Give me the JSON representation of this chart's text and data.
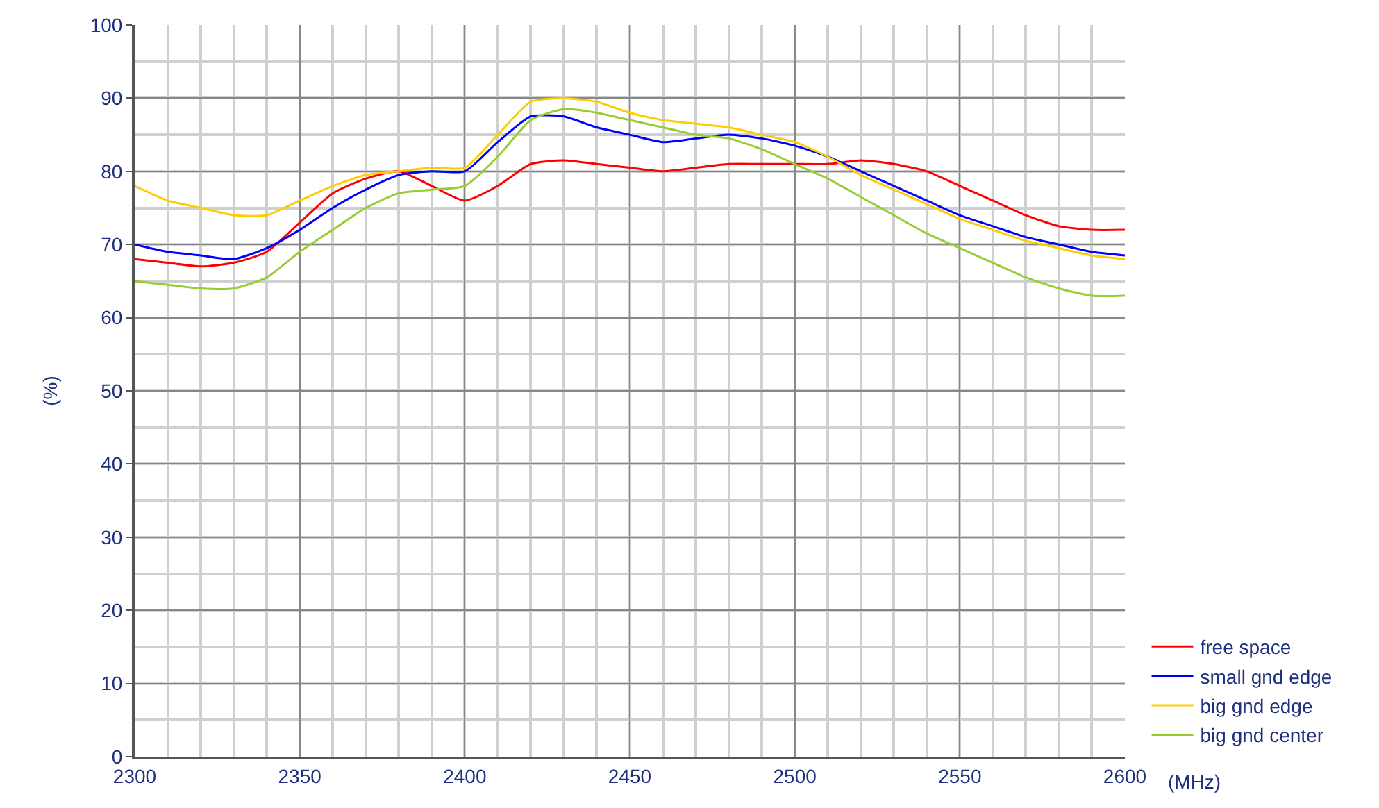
{
  "chart_data": {
    "type": "line",
    "xlabel": "(MHz)",
    "ylabel": "(%)",
    "x": [
      2300,
      2310,
      2320,
      2330,
      2340,
      2350,
      2360,
      2370,
      2380,
      2390,
      2400,
      2410,
      2420,
      2430,
      2440,
      2450,
      2460,
      2470,
      2480,
      2490,
      2500,
      2510,
      2520,
      2530,
      2540,
      2550,
      2560,
      2570,
      2580,
      2590,
      2600
    ],
    "series": [
      {
        "name": "free space",
        "color": "#ff0000",
        "values": [
          68,
          67.5,
          67,
          67.5,
          69,
          73,
          77,
          79,
          80,
          78,
          76,
          78,
          81,
          81.5,
          81,
          80.5,
          80,
          80.5,
          81,
          81,
          81,
          81,
          81.5,
          81,
          80,
          78,
          76,
          74,
          72.5,
          72,
          72
        ]
      },
      {
        "name": "small gnd edge",
        "color": "#0000ff",
        "values": [
          70,
          69,
          68.5,
          68,
          69.5,
          72,
          75,
          77.5,
          79.5,
          80,
          80,
          84,
          87.5,
          87.5,
          86,
          85,
          84,
          84.5,
          85,
          84.5,
          83.5,
          82,
          80,
          78,
          76,
          74,
          72.5,
          71,
          70,
          69,
          68.5
        ]
      },
      {
        "name": "big gnd edge",
        "color": "#ffcc00",
        "values": [
          78,
          76,
          75,
          74,
          74,
          76,
          78,
          79.5,
          80,
          80.5,
          80.5,
          85,
          89.5,
          90,
          89.5,
          88,
          87,
          86.5,
          86,
          85,
          84,
          82,
          79.5,
          77.5,
          75.5,
          73.5,
          72,
          70.5,
          69.5,
          68.5,
          68
        ]
      },
      {
        "name": "big gnd center",
        "color": "#99cc33",
        "values": [
          65,
          64.5,
          64,
          64,
          65.5,
          69,
          72,
          75,
          77,
          77.5,
          78,
          82,
          87,
          88.5,
          88,
          87,
          86,
          85,
          84.5,
          83,
          81,
          79,
          76.5,
          74,
          71.5,
          69.5,
          67.5,
          65.5,
          64,
          63,
          63
        ]
      }
    ],
    "xlim": [
      2300,
      2600
    ],
    "xticks": [
      2300,
      2350,
      2400,
      2450,
      2500,
      2550,
      2600
    ],
    "ylim": [
      0,
      100
    ],
    "yticks": [
      0,
      10,
      20,
      30,
      40,
      50,
      60,
      70,
      80,
      90,
      100
    ],
    "grid": true,
    "legend": "bottom right",
    "marker": "none",
    "line_style": "solid"
  }
}
